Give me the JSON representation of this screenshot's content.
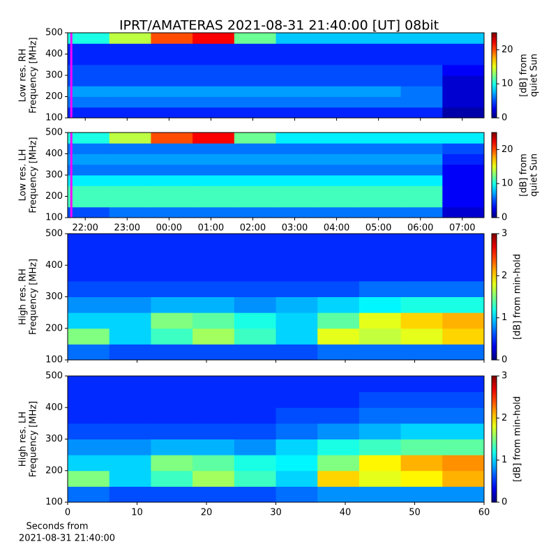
{
  "chart_data": [
    {
      "type": "heatmap",
      "title": "IPRT/AMATERAS 2021-08-31 21:40:00 [UT]   08bit",
      "ylabel_lines": [
        "Low res. RH",
        "Frequency [MHz]"
      ],
      "ylim": [
        100,
        500
      ],
      "yticks": [
        100,
        200,
        300,
        400,
        500
      ],
      "xlim": [
        21.58,
        31.52
      ],
      "xticks": [
        {
          "value": 22,
          "label": "22:00"
        },
        {
          "value": 23,
          "label": "23:00"
        },
        {
          "value": 24,
          "label": "00:00"
        },
        {
          "value": 25,
          "label": "01:00"
        },
        {
          "value": 26,
          "label": "02:00"
        },
        {
          "value": 27,
          "label": "03:00"
        },
        {
          "value": 28,
          "label": "04:00"
        },
        {
          "value": 29,
          "label": "05:00"
        },
        {
          "value": 30,
          "label": "06:00"
        },
        {
          "value": 31,
          "label": "07:00"
        }
      ],
      "xtick_labels": false,
      "colormap": "jet",
      "marker_x": 21.667,
      "marker_color": "#ff00ff",
      "colorbar": {
        "label_lines": [
          "[dB] from",
          "quiet Sun"
        ],
        "lim": [
          0,
          25
        ],
        "ticks": [
          0,
          10,
          20
        ]
      },
      "z": [
        [
          4,
          4,
          4,
          4,
          4,
          4,
          4,
          4,
          4,
          1
        ],
        [
          6,
          6,
          6,
          6,
          6,
          6,
          6,
          6,
          6,
          2
        ],
        [
          7,
          7,
          7,
          7,
          7,
          7,
          7,
          7,
          6,
          2
        ],
        [
          5,
          5,
          5,
          5,
          5,
          5,
          5,
          5,
          5,
          2
        ],
        [
          5,
          5,
          5,
          5,
          5,
          5,
          5,
          5,
          5,
          3
        ],
        [
          4,
          4,
          4,
          4,
          4,
          4,
          4,
          4,
          4,
          4
        ],
        [
          4,
          4,
          4,
          4,
          4,
          4,
          4,
          4,
          4,
          4
        ],
        [
          10,
          14,
          20,
          22,
          12,
          8,
          8,
          8,
          8,
          8
        ]
      ]
    },
    {
      "type": "heatmap",
      "ylabel_lines": [
        "Low res. LH",
        "Frequency [MHz]"
      ],
      "ylim": [
        100,
        500
      ],
      "yticks": [
        100,
        200,
        300,
        400,
        500
      ],
      "xlim": [
        21.58,
        31.52
      ],
      "xticks": [
        {
          "value": 22,
          "label": "22:00"
        },
        {
          "value": 23,
          "label": "23:00"
        },
        {
          "value": 24,
          "label": "00:00"
        },
        {
          "value": 25,
          "label": "01:00"
        },
        {
          "value": 26,
          "label": "02:00"
        },
        {
          "value": 27,
          "label": "03:00"
        },
        {
          "value": 28,
          "label": "04:00"
        },
        {
          "value": 29,
          "label": "05:00"
        },
        {
          "value": 30,
          "label": "06:00"
        },
        {
          "value": 31,
          "label": "07:00"
        }
      ],
      "xtick_labels": true,
      "colormap": "jet",
      "marker_x": 21.667,
      "marker_color": "#ff00ff",
      "colorbar": {
        "label_lines": [
          "[dB] from",
          "quiet Sun"
        ],
        "lim": [
          0,
          25
        ],
        "ticks": [
          0,
          10,
          20
        ]
      },
      "z": [
        [
          5,
          6,
          6,
          6,
          6,
          6,
          6,
          6,
          6,
          2
        ],
        [
          11,
          11,
          11,
          11,
          11,
          11,
          11,
          11,
          11,
          3
        ],
        [
          11,
          11,
          11,
          11,
          11,
          11,
          11,
          11,
          11,
          3
        ],
        [
          9,
          9,
          9,
          9,
          9,
          9,
          9,
          9,
          9,
          3
        ],
        [
          6,
          6,
          6,
          6,
          6,
          6,
          6,
          6,
          6,
          3
        ],
        [
          7,
          7,
          7,
          7,
          7,
          7,
          7,
          7,
          7,
          4
        ],
        [
          6,
          6,
          6,
          6,
          6,
          6,
          6,
          6,
          6,
          5
        ],
        [
          10,
          14,
          20,
          22,
          12,
          9,
          9,
          9,
          9,
          9
        ]
      ]
    },
    {
      "type": "heatmap",
      "ylabel_lines": [
        "High res. RH",
        "Frequency [MHz]"
      ],
      "ylim": [
        100,
        500
      ],
      "yticks": [
        100,
        200,
        300,
        400,
        500
      ],
      "xlim": [
        0,
        60
      ],
      "xticks": [
        0,
        10,
        20,
        30,
        40,
        50,
        60
      ],
      "xtick_labels": false,
      "colormap": "jet",
      "colorbar": {
        "label_lines": [
          "[dB] from min-hold"
        ],
        "lim": [
          0,
          3
        ],
        "ticks": [
          0,
          1,
          2,
          3
        ]
      },
      "z": [
        [
          0.7,
          0.6,
          0.6,
          0.6,
          0.6,
          0.6,
          0.7,
          0.7,
          0.7,
          0.7
        ],
        [
          1.5,
          1.0,
          1.3,
          1.6,
          1.3,
          1.0,
          1.8,
          1.7,
          1.8,
          2.0
        ],
        [
          1.0,
          1.0,
          1.5,
          1.4,
          1.2,
          1.0,
          1.4,
          1.8,
          2.0,
          2.1
        ],
        [
          0.8,
          0.8,
          0.9,
          0.9,
          0.8,
          0.9,
          1.0,
          1.1,
          1.2,
          1.2
        ],
        [
          0.6,
          0.6,
          0.6,
          0.6,
          0.6,
          0.6,
          0.6,
          0.7,
          0.7,
          0.7
        ],
        [
          0.5,
          0.5,
          0.5,
          0.5,
          0.5,
          0.5,
          0.5,
          0.5,
          0.5,
          0.5
        ],
        [
          0.5,
          0.5,
          0.5,
          0.5,
          0.5,
          0.5,
          0.5,
          0.5,
          0.5,
          0.5
        ],
        [
          0.5,
          0.5,
          0.5,
          0.5,
          0.5,
          0.5,
          0.5,
          0.5,
          0.5,
          0.5
        ]
      ]
    },
    {
      "type": "heatmap",
      "ylabel_lines": [
        "High res. LH",
        "Frequency [MHz]"
      ],
      "ylim": [
        100,
        500
      ],
      "yticks": [
        100,
        200,
        300,
        400,
        500
      ],
      "xlim": [
        0,
        60
      ],
      "xticks": [
        0,
        10,
        20,
        30,
        40,
        50,
        60
      ],
      "xtick_labels": true,
      "colormap": "jet",
      "xlabel_lines": [
        "Seconds from",
        "2021-08-31 21:40:00"
      ],
      "colorbar": {
        "label_lines": [
          "[dB] from min-hold"
        ],
        "lim": [
          0,
          3
        ],
        "ticks": [
          0,
          1,
          2,
          3
        ]
      },
      "z": [
        [
          0.7,
          0.6,
          0.6,
          0.6,
          0.6,
          0.7,
          0.8,
          0.8,
          0.8,
          0.8
        ],
        [
          1.5,
          1.0,
          1.3,
          1.6,
          1.3,
          1.0,
          2.0,
          1.8,
          1.9,
          2.1
        ],
        [
          1.0,
          1.0,
          1.5,
          1.4,
          1.2,
          1.1,
          1.5,
          1.9,
          2.1,
          2.2
        ],
        [
          0.8,
          0.8,
          0.9,
          0.9,
          0.8,
          1.0,
          1.2,
          1.3,
          1.4,
          1.4
        ],
        [
          0.6,
          0.6,
          0.6,
          0.6,
          0.6,
          0.7,
          0.8,
          0.9,
          1.0,
          1.0
        ],
        [
          0.5,
          0.5,
          0.5,
          0.5,
          0.5,
          0.6,
          0.6,
          0.7,
          0.7,
          0.7
        ],
        [
          0.5,
          0.5,
          0.5,
          0.5,
          0.5,
          0.5,
          0.5,
          0.6,
          0.6,
          0.6
        ],
        [
          0.5,
          0.5,
          0.5,
          0.5,
          0.5,
          0.5,
          0.5,
          0.5,
          0.5,
          0.5
        ]
      ]
    }
  ]
}
